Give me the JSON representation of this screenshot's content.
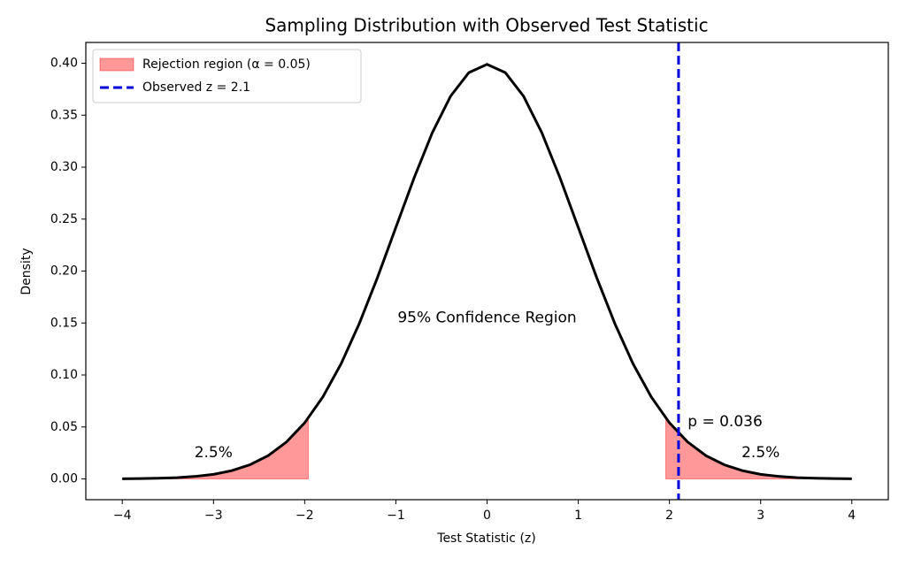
{
  "chart_data": {
    "type": "line",
    "title": "Sampling Distribution with Observed Test Statistic",
    "xlabel": "Test Statistic (z)",
    "ylabel": "Density",
    "x": [
      -4,
      -3.8,
      -3.6,
      -3.4,
      -3.2,
      -3,
      -2.8,
      -2.6,
      -2.4,
      -2.2,
      -2,
      -1.8,
      -1.6,
      -1.4,
      -1.2,
      -1,
      -0.8,
      -0.6,
      -0.4,
      -0.2,
      0,
      0.2,
      0.4,
      0.6,
      0.8,
      1,
      1.2,
      1.4,
      1.6,
      1.8,
      2,
      2.2,
      2.4,
      2.6,
      2.8,
      3,
      3.2,
      3.4,
      3.6,
      3.8,
      4
    ],
    "series": [
      {
        "color": "#000000",
        "values": [
          0.0001,
          0.0003,
          0.0006,
          0.0012,
          0.0024,
          0.0044,
          0.0079,
          0.0136,
          0.0224,
          0.0355,
          0.054,
          0.079,
          0.1109,
          0.1497,
          0.1942,
          0.242,
          0.2897,
          0.3332,
          0.3683,
          0.391,
          0.3989,
          0.391,
          0.3683,
          0.3332,
          0.2897,
          0.242,
          0.1942,
          0.1497,
          0.1109,
          0.079,
          0.054,
          0.0355,
          0.0224,
          0.0136,
          0.0079,
          0.0044,
          0.0024,
          0.0012,
          0.0006,
          0.0003,
          0.0001
        ]
      }
    ],
    "fills": {
      "name": "Rejection region (α = 0.05)",
      "color": "#ff0000",
      "regions": [
        {
          "x": [
            -4,
            -3.8,
            -3.6,
            -3.4,
            -3.2,
            -3,
            -2.8,
            -2.6,
            -2.4,
            -2.2,
            -2,
            -1.96
          ],
          "values": [
            0.0001,
            0.0003,
            0.0006,
            0.0012,
            0.0024,
            0.0044,
            0.0079,
            0.0136,
            0.0224,
            0.0355,
            0.054,
            0.0584
          ]
        },
        {
          "x": [
            1.96,
            2,
            2.2,
            2.4,
            2.6,
            2.8,
            3,
            3.2,
            3.4,
            3.6,
            3.8,
            4
          ],
          "values": [
            0.0584,
            0.054,
            0.0355,
            0.0224,
            0.0136,
            0.0079,
            0.0044,
            0.0024,
            0.0012,
            0.0006,
            0.0003,
            0.0001
          ]
        }
      ]
    },
    "vline": {
      "name": "Observed z = 2.1",
      "x": 2.1,
      "color": "#0000dd"
    },
    "annotations": [
      {
        "text": "95% Confidence Region",
        "x": 0,
        "y": 0.155,
        "color": "#000000"
      },
      {
        "text": "p = 0.036",
        "x": 2.2,
        "y": 0.055,
        "color": "#0000dd"
      },
      {
        "text": "2.5%",
        "x": -3,
        "y": 0.025,
        "color": "#ee0000"
      },
      {
        "text": "2.5%",
        "x": 3,
        "y": 0.025,
        "color": "#ee0000"
      }
    ],
    "xlim": [
      -4.4,
      4.4
    ],
    "ylim": [
      -0.02,
      0.42
    ],
    "xticks": [
      {
        "value": -4,
        "label": "−4"
      },
      {
        "value": -3,
        "label": "−3"
      },
      {
        "value": -2,
        "label": "−2"
      },
      {
        "value": -1,
        "label": "−1"
      },
      0,
      1,
      2,
      3,
      4
    ],
    "yticks": [
      {
        "value": 0,
        "label": "0.00"
      },
      {
        "value": 0.05,
        "label": "0.05"
      },
      {
        "value": 0.1,
        "label": "0.10"
      },
      {
        "value": 0.15,
        "label": "0.15"
      },
      {
        "value": 0.2,
        "label": "0.20"
      },
      {
        "value": 0.25,
        "label": "0.25"
      },
      {
        "value": 0.3,
        "label": "0.30"
      },
      {
        "value": 0.35,
        "label": "0.35"
      },
      {
        "value": 0.4,
        "label": "0.40"
      }
    ],
    "legend": "upper left"
  }
}
